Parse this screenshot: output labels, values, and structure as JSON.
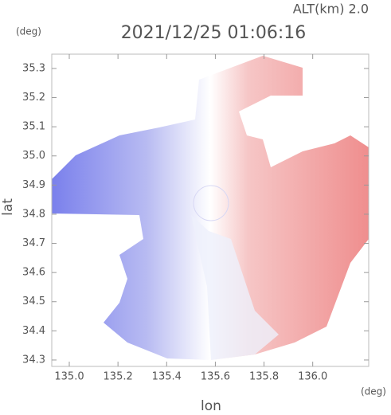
{
  "chart_data": {
    "type": "radar-map",
    "title": "2021/12/25 01:06:16",
    "subtitle": "ALT(km) 2.0",
    "x_label": "lon",
    "y_label": "lat",
    "x_unit": "(deg)",
    "y_unit": "(deg)",
    "xlim": [
      134.928,
      136.23
    ],
    "ylim": [
      34.278,
      35.349
    ],
    "xticks": [
      {
        "value": 135.0,
        "label": "135.0"
      },
      135.2,
      135.4,
      135.6,
      135.8,
      {
        "value": 136.0,
        "label": "136.0"
      }
    ],
    "yticks": [
      34.3,
      34.4,
      34.5,
      34.6,
      34.7,
      34.8,
      34.9,
      {
        "value": 35.0,
        "label": "35.0"
      },
      35.1,
      35.2,
      35.3
    ]
  }
}
